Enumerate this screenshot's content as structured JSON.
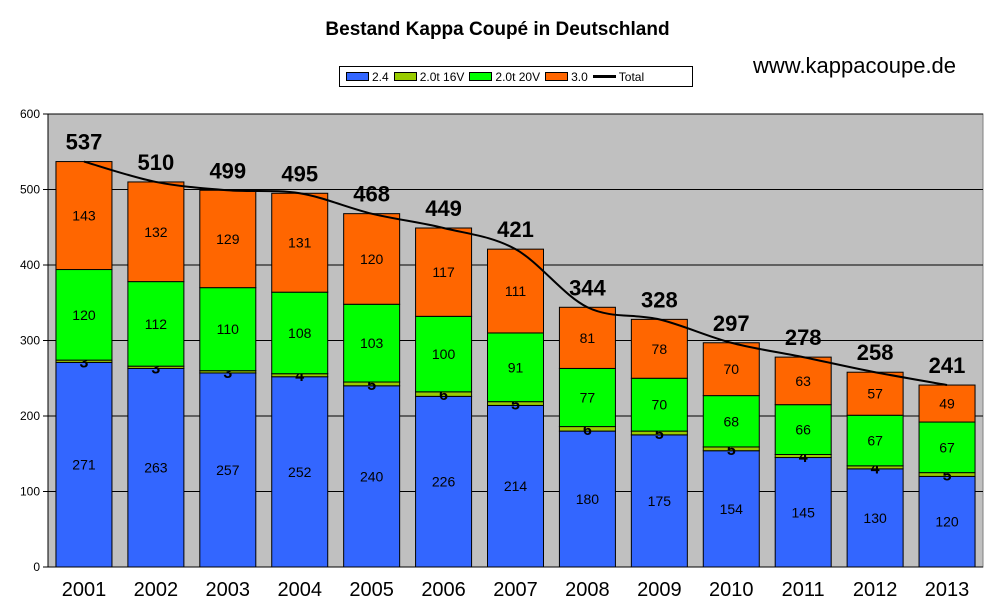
{
  "chart_data": {
    "type": "bar",
    "stacked": true,
    "title": "Bestand Kappa Coupé in Deutschland",
    "categories": [
      "2001",
      "2002",
      "2003",
      "2004",
      "2005",
      "2006",
      "2007",
      "2008",
      "2009",
      "2010",
      "2011",
      "2012",
      "2013"
    ],
    "series": [
      {
        "name": "2.4",
        "color": "#3366ff",
        "values": [
          271,
          263,
          257,
          252,
          240,
          226,
          214,
          180,
          175,
          154,
          145,
          130,
          120
        ]
      },
      {
        "name": "2.0t 16V",
        "color": "#99cc00",
        "values": [
          3,
          3,
          3,
          4,
          5,
          6,
          5,
          6,
          5,
          5,
          4,
          4,
          5
        ]
      },
      {
        "name": "2.0t 20V",
        "color": "#00ff00",
        "values": [
          120,
          112,
          110,
          108,
          103,
          100,
          91,
          77,
          70,
          68,
          66,
          67,
          67
        ]
      },
      {
        "name": "3.0",
        "color": "#ff6600",
        "values": [
          143,
          132,
          129,
          131,
          120,
          117,
          111,
          81,
          78,
          70,
          63,
          57,
          49
        ]
      }
    ],
    "total": {
      "name": "Total",
      "color": "#000000",
      "values": [
        537,
        510,
        499,
        495,
        468,
        449,
        421,
        344,
        328,
        297,
        278,
        258,
        241
      ]
    },
    "ylim": [
      0,
      600
    ],
    "yticks": [
      0,
      100,
      200,
      300,
      400,
      500,
      600
    ],
    "grid": true,
    "legend_position": "top",
    "plot_background": "#c0c0c0"
  },
  "website": "www.kappacoupe.de"
}
